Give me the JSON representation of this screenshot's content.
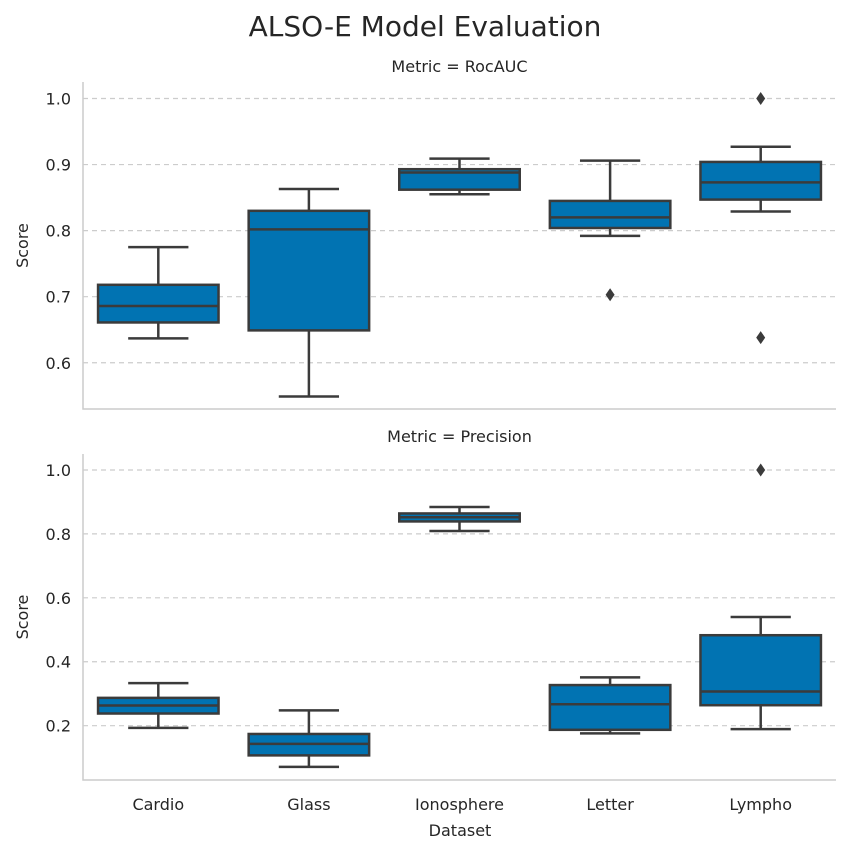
{
  "chart_data": {
    "type": "box",
    "title": "ALSO-E Model Evaluation",
    "xlabel": "Dataset",
    "ylabel": "Score",
    "categories": [
      "Cardio",
      "Glass",
      "Ionosphere",
      "Letter",
      "Lympho"
    ],
    "color": "#0173b2",
    "edge_color": "#3b3b3b",
    "grid": "y-dashed",
    "panels": [
      {
        "title": "Metric = RocAUC",
        "ylim": [
          0.53,
          1.025
        ],
        "yticks": [
          0.6,
          0.7,
          0.8,
          0.9,
          1.0
        ],
        "ytick_labels": [
          "0.6",
          "0.7",
          "0.8",
          "0.9",
          "1.0"
        ],
        "boxes": [
          {
            "category": "Cardio",
            "whislo": 0.637,
            "q1": 0.661,
            "med": 0.686,
            "q3": 0.718,
            "whishi": 0.775,
            "fliers": []
          },
          {
            "category": "Glass",
            "whislo": 0.549,
            "q1": 0.649,
            "med": 0.802,
            "q3": 0.83,
            "whishi": 0.863,
            "fliers": []
          },
          {
            "category": "Ionosphere",
            "whislo": 0.855,
            "q1": 0.862,
            "med": 0.888,
            "q3": 0.893,
            "whishi": 0.909,
            "fliers": []
          },
          {
            "category": "Letter",
            "whislo": 0.792,
            "q1": 0.804,
            "med": 0.82,
            "q3": 0.845,
            "whishi": 0.906,
            "fliers": [
              0.703
            ]
          },
          {
            "category": "Lympho",
            "whislo": 0.829,
            "q1": 0.847,
            "med": 0.873,
            "q3": 0.904,
            "whishi": 0.927,
            "fliers": [
              1.0,
              0.638
            ]
          }
        ]
      },
      {
        "title": "Metric = Precision",
        "ylim": [
          0.03,
          1.05
        ],
        "yticks": [
          0.2,
          0.4,
          0.6,
          0.8,
          1.0
        ],
        "ytick_labels": [
          "0.2",
          "0.4",
          "0.6",
          "0.8",
          "1.0"
        ],
        "boxes": [
          {
            "category": "Cardio",
            "whislo": 0.193,
            "q1": 0.238,
            "med": 0.263,
            "q3": 0.287,
            "whishi": 0.333,
            "fliers": []
          },
          {
            "category": "Glass",
            "whislo": 0.071,
            "q1": 0.107,
            "med": 0.143,
            "q3": 0.174,
            "whishi": 0.248,
            "fliers": []
          },
          {
            "category": "Ionosphere",
            "whislo": 0.809,
            "q1": 0.839,
            "med": 0.852,
            "q3": 0.864,
            "whishi": 0.884,
            "fliers": []
          },
          {
            "category": "Letter",
            "whislo": 0.176,
            "q1": 0.187,
            "med": 0.267,
            "q3": 0.327,
            "whishi": 0.351,
            "fliers": []
          },
          {
            "category": "Lympho",
            "whislo": 0.189,
            "q1": 0.264,
            "med": 0.307,
            "q3": 0.483,
            "whishi": 0.54,
            "fliers": [
              1.0
            ]
          }
        ]
      }
    ]
  }
}
